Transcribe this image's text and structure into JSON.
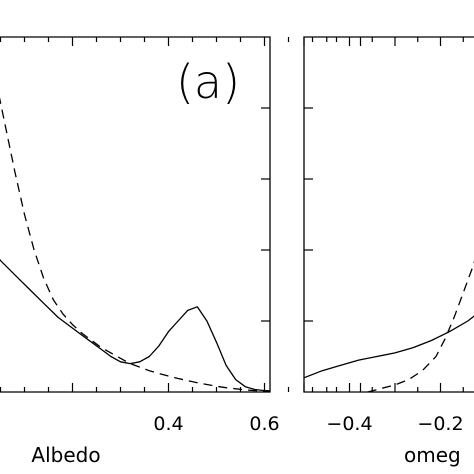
{
  "chart_data": [
    {
      "type": "line",
      "panel_label": "(a)",
      "xlabel": "Albedo",
      "xlim": [
        0.0,
        0.8
      ],
      "ylim": [
        0,
        1
      ],
      "x_ticks": [
        0.4,
        0.6
      ],
      "x_tick_labels": [
        "0.4",
        "0.6"
      ],
      "series": [
        {
          "style": "solid",
          "color": "#000000",
          "x": [
            0.0,
            0.02,
            0.05,
            0.08,
            0.11,
            0.14,
            0.17,
            0.2,
            0.23,
            0.26,
            0.28,
            0.3,
            0.32,
            0.34,
            0.36,
            0.38,
            0.4,
            0.42,
            0.44,
            0.46,
            0.48,
            0.5,
            0.52,
            0.54,
            0.56,
            0.58,
            0.6,
            0.62,
            0.64,
            0.66,
            0.68,
            0.7,
            0.72,
            0.74,
            0.76,
            0.78
          ],
          "y": [
            0.49,
            0.43,
            0.37,
            0.33,
            0.29,
            0.25,
            0.21,
            0.18,
            0.15,
            0.12,
            0.1,
            0.085,
            0.08,
            0.085,
            0.1,
            0.13,
            0.17,
            0.2,
            0.23,
            0.24,
            0.2,
            0.14,
            0.075,
            0.035,
            0.015,
            0.007,
            0.004,
            0.003,
            0.002,
            0.001,
            0.0,
            0.0,
            0.0,
            0.0,
            0.0,
            0.0
          ]
        },
        {
          "style": "dashed",
          "color": "#000000",
          "x": [
            0.0,
            0.02,
            0.04,
            0.06,
            0.08,
            0.1,
            0.12,
            0.14,
            0.16,
            0.18,
            0.2,
            0.22,
            0.24,
            0.26,
            0.28,
            0.3,
            0.32,
            0.34,
            0.36,
            0.38,
            0.4,
            0.42,
            0.44,
            0.46,
            0.48,
            0.5,
            0.52,
            0.54,
            0.56,
            0.58,
            0.6,
            0.62,
            0.64,
            0.66,
            0.68,
            0.7
          ],
          "y": [
            0.99,
            0.96,
            0.88,
            0.75,
            0.62,
            0.5,
            0.4,
            0.32,
            0.26,
            0.22,
            0.19,
            0.165,
            0.145,
            0.125,
            0.11,
            0.095,
            0.08,
            0.07,
            0.06,
            0.052,
            0.045,
            0.038,
            0.032,
            0.026,
            0.021,
            0.016,
            0.012,
            0.009,
            0.006,
            0.004,
            0.003,
            0.002,
            0.001,
            0.0,
            0.0,
            0.0
          ]
        }
      ]
    },
    {
      "type": "line",
      "xlabel": "omeg",
      "xlim": [
        -0.5,
        0.0
      ],
      "ylim": [
        0,
        1
      ],
      "x_ticks": [
        -0.4,
        -0.2
      ],
      "x_tick_labels": [
        "−0.4",
        "−0.2"
      ],
      "series": [
        {
          "style": "solid",
          "color": "#000000",
          "x": [
            -0.5,
            -0.46,
            -0.42,
            -0.38,
            -0.34,
            -0.3,
            -0.26,
            -0.22,
            -0.18,
            -0.14,
            -0.12,
            -0.1,
            -0.08,
            -0.06,
            -0.04,
            -0.02,
            0.0
          ],
          "y": [
            0.04,
            0.06,
            0.075,
            0.09,
            0.1,
            0.11,
            0.125,
            0.145,
            0.17,
            0.2,
            0.22,
            0.24,
            0.26,
            0.28,
            0.3,
            0.32,
            0.34
          ]
        },
        {
          "style": "dashed",
          "color": "#000000",
          "x": [
            -0.36,
            -0.33,
            -0.3,
            -0.27,
            -0.24,
            -0.21,
            -0.19,
            -0.17,
            -0.15,
            -0.13,
            -0.11,
            -0.09,
            -0.07,
            -0.05,
            -0.03,
            -0.01
          ],
          "y": [
            0.0,
            0.01,
            0.02,
            0.035,
            0.06,
            0.1,
            0.15,
            0.21,
            0.28,
            0.35,
            0.43,
            0.5,
            0.57,
            0.63,
            0.68,
            0.72
          ]
        }
      ]
    }
  ]
}
